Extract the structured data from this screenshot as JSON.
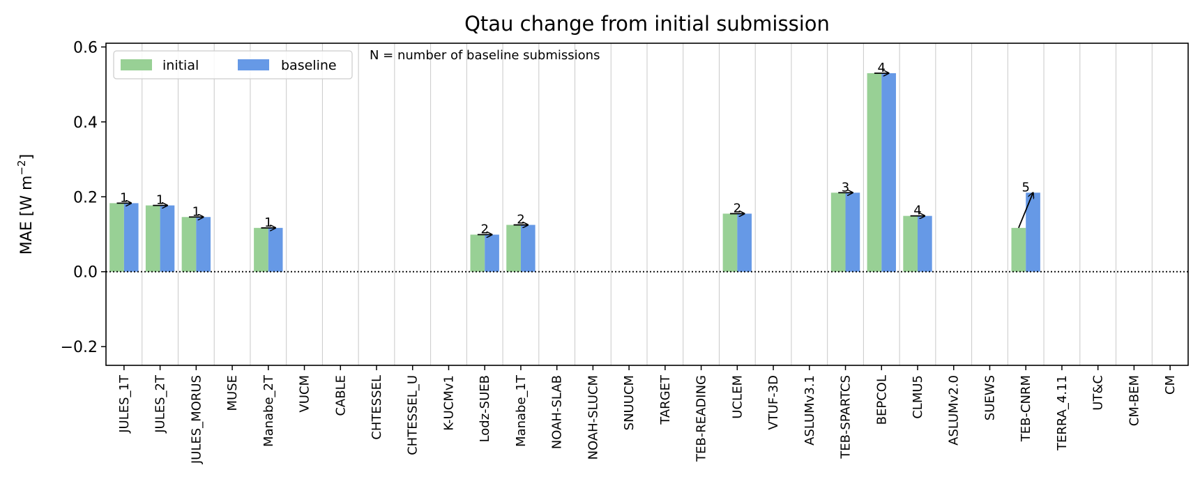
{
  "chart_data": {
    "type": "bar",
    "title": "Qtau change from initial submission",
    "ylabel": "MAE [W m",
    "ylabel_sup": "−2",
    "ylabel_close": "]",
    "ylim": [
      -0.25,
      0.61
    ],
    "yticks": [
      -0.2,
      0.0,
      0.2,
      0.4,
      0.6
    ],
    "ytick_labels": [
      "−0.2",
      "0.0",
      "0.2",
      "0.4",
      "0.6"
    ],
    "grid": "vertical",
    "zero_line": "dotted",
    "note": "N = number of baseline submissions",
    "legend": {
      "placement": "top-left",
      "entries": [
        "initial",
        "baseline"
      ]
    },
    "colors": {
      "initial": "#98d095",
      "baseline": "#6699e6"
    },
    "categories": [
      "JULES_1T",
      "JULES_2T",
      "JULES_MORUS",
      "MUSE",
      "Manabe_2T",
      "VUCM",
      "CABLE",
      "CHTESSEL",
      "CHTESSEL_U",
      "K-UCMv1",
      "Lodz-SUEB",
      "Manabe_1T",
      "NOAH-SLAB",
      "NOAH-SLUCM",
      "SNUUCM",
      "TARGET",
      "TEB-READING",
      "UCLEM",
      "VTUF-3D",
      "ASLUMv3.1",
      "TEB-SPARTCS",
      "BEPCOL",
      "CLMU5",
      "ASLUMv2.0",
      "SUEWS",
      "TEB-CNRM",
      "TERRA_4.11",
      "UT&C",
      "CM-BEM",
      "CM"
    ],
    "series": [
      {
        "name": "initial",
        "values": [
          0.183,
          0.177,
          0.146,
          null,
          0.117,
          null,
          null,
          null,
          null,
          null,
          0.099,
          0.125,
          null,
          null,
          null,
          null,
          null,
          0.155,
          null,
          null,
          0.211,
          0.53,
          0.149,
          null,
          null,
          0.117,
          null,
          null,
          null,
          null
        ]
      },
      {
        "name": "baseline",
        "values": [
          0.183,
          0.177,
          0.146,
          null,
          0.117,
          null,
          null,
          null,
          null,
          null,
          0.099,
          0.125,
          null,
          null,
          null,
          null,
          null,
          0.155,
          null,
          null,
          0.211,
          0.53,
          0.149,
          null,
          null,
          0.211,
          null,
          null,
          null,
          null
        ]
      }
    ],
    "n_labels": [
      "1",
      "1",
      "1",
      null,
      "1",
      null,
      null,
      null,
      null,
      null,
      "2",
      "2",
      null,
      null,
      null,
      null,
      null,
      "2",
      null,
      null,
      "3",
      "4",
      "4",
      null,
      null,
      "5",
      null,
      null,
      null,
      null
    ]
  }
}
